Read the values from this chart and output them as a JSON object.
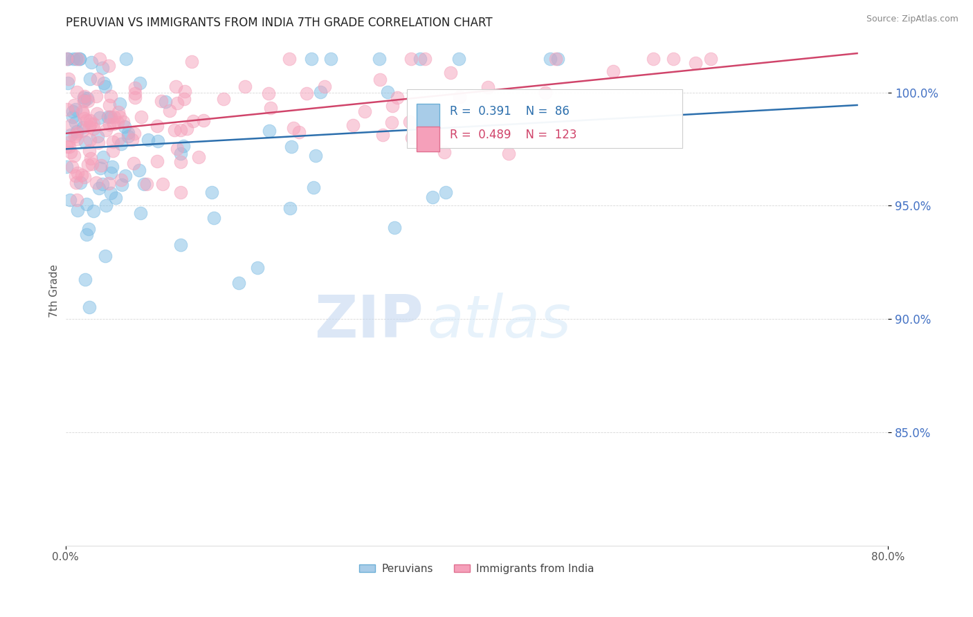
{
  "title": "PERUVIAN VS IMMIGRANTS FROM INDIA 7TH GRADE CORRELATION CHART",
  "source": "Source: ZipAtlas.com",
  "ylabel": "7th Grade",
  "y_ticks": [
    85.0,
    90.0,
    95.0,
    100.0
  ],
  "xlim": [
    0.0,
    80.0
  ],
  "ylim": [
    80.0,
    102.5
  ],
  "blue_R": 0.391,
  "blue_N": 86,
  "pink_R": 0.489,
  "pink_N": 123,
  "blue_color": "#7fbde4",
  "pink_color": "#f5a0ba",
  "blue_line_color": "#2c6fad",
  "pink_line_color": "#d0446a",
  "legend_blue_label": "Peruvians",
  "legend_pink_label": "Immigrants from India",
  "background_color": "#ffffff",
  "watermark_zip": "ZIP",
  "watermark_atlas": "atlas",
  "title_color": "#222222",
  "title_fontsize": 12,
  "ytick_color": "#4472c4",
  "grid_color": "#cccccc"
}
